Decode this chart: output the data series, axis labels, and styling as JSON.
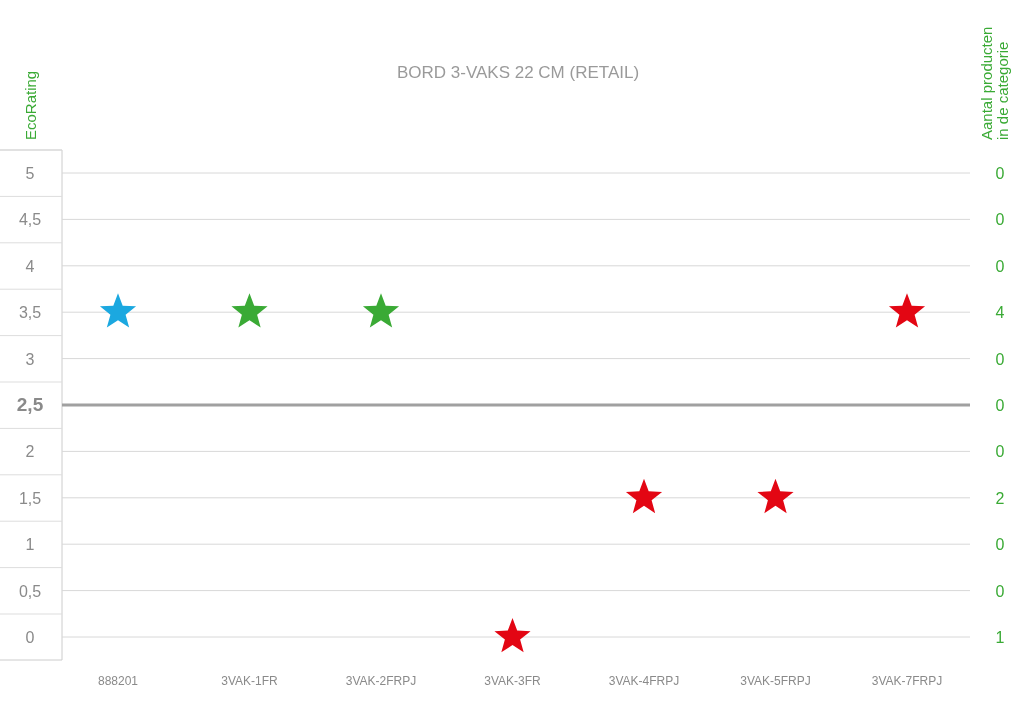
{
  "chart_data": {
    "type": "scatter",
    "title": "BORD 3-VAKS 22 CM (RETAIL)",
    "ylabel": "EcoRating",
    "y2label": "Aantal producten\nin de categorie",
    "categories": [
      "888201",
      "3VAK-1FR",
      "3VAK-2FRPJ",
      "3VAK-3FR",
      "3VAK-4FRPJ",
      "3VAK-5FRPJ",
      "3VAK-7FRPJ"
    ],
    "series": [
      {
        "values": [
          3.5,
          3.5,
          3.5,
          0,
          1.5,
          1.5,
          3.5
        ],
        "colors": [
          "#1ba8e0",
          "#3aaa35",
          "#3aaa35",
          "#e30613",
          "#e30613",
          "#e30613",
          "#e30613"
        ]
      }
    ],
    "marker": "star",
    "grid": "y",
    "ylim": [
      0,
      5
    ],
    "yticks": [
      0,
      {
        "value": 0.5,
        "label": "0,5"
      },
      1,
      {
        "value": 1.5,
        "label": "1,5"
      },
      2,
      {
        "value": 2.5,
        "label": "2,5"
      },
      3,
      {
        "value": 3.5,
        "label": "3,5"
      },
      4,
      {
        "value": 4.5,
        "label": "4,5"
      },
      5
    ],
    "annotations": [
      "0",
      "0",
      "0",
      "4",
      "0",
      "0",
      "0",
      "2",
      "0",
      "0",
      "1"
    ],
    "ref_lines": [
      {
        "axis": "y",
        "value": 2.5,
        "color": "#a0a0a0"
      }
    ]
  }
}
